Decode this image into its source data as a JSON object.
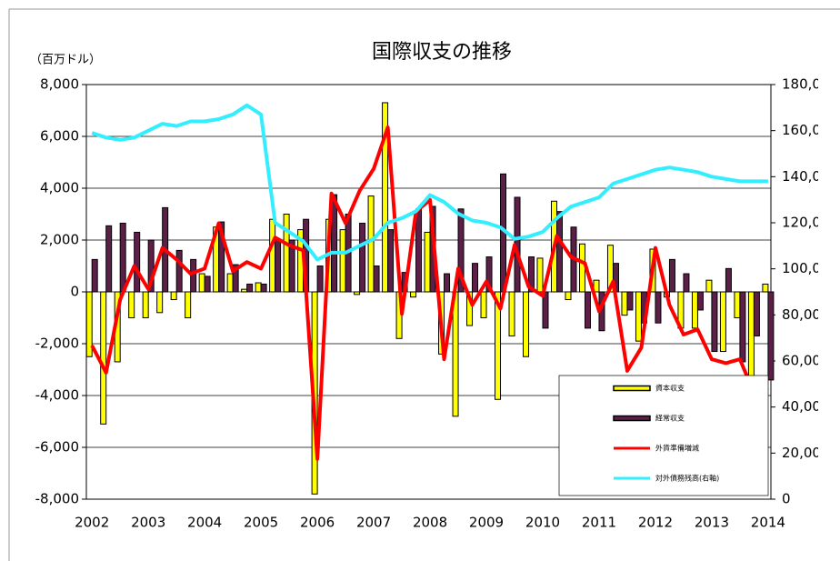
{
  "chart_data": {
    "type": "bar",
    "title": "国際収支の推移",
    "y_unit_label": "（百万ドル）",
    "x": [
      2002,
      2002.25,
      2002.5,
      2002.75,
      2003,
      2003.25,
      2003.5,
      2003.75,
      2004,
      2004.25,
      2004.5,
      2004.75,
      2005,
      2005.25,
      2005.5,
      2005.75,
      2006,
      2006.25,
      2006.5,
      2006.75,
      2007,
      2007.25,
      2007.5,
      2007.75,
      2008,
      2008.25,
      2008.5,
      2008.75,
      2009,
      2009.25,
      2009.5,
      2009.75,
      2010,
      2010.25,
      2010.5,
      2010.75,
      2011,
      2011.25,
      2011.5,
      2011.75,
      2012,
      2012.25,
      2012.5,
      2012.75,
      2013,
      2013.25,
      2013.5,
      2013.75,
      2014
    ],
    "xlim": [
      2001.9,
      2014.05
    ],
    "xticks": [
      2002,
      2003,
      2004,
      2005,
      2006,
      2007,
      2008,
      2009,
      2010,
      2011,
      2012,
      2013,
      2014
    ],
    "ylim": [
      -8000,
      8000
    ],
    "yticks": [
      {
        "value": -8000,
        "label": "-8,000"
      },
      {
        "value": -6000,
        "label": "-6,000"
      },
      {
        "value": -4000,
        "label": "-4,000"
      },
      {
        "value": -2000,
        "label": "-2,000"
      },
      0,
      {
        "value": 2000,
        "label": "2,000"
      },
      {
        "value": 4000,
        "label": "4,000"
      },
      {
        "value": 6000,
        "label": "6,000"
      },
      {
        "value": 8000,
        "label": "8,000"
      }
    ],
    "y2lim": [
      0,
      180000
    ],
    "y2ticks": [
      0,
      {
        "value": 20000,
        "label": "20,000"
      },
      {
        "value": 40000,
        "label": "40,000"
      },
      {
        "value": 60000,
        "label": "60,000"
      },
      {
        "value": 80000,
        "label": "80,000"
      },
      {
        "value": 100000,
        "label": "100,000"
      },
      {
        "value": 120000,
        "label": "120,000"
      },
      {
        "value": 140000,
        "label": "140,000"
      },
      {
        "value": 160000,
        "label": "160,000"
      },
      {
        "value": 180000,
        "label": "180,000"
      }
    ],
    "grid": true,
    "legend": "lower right",
    "series": [
      {
        "name": "資本収支",
        "type": "bar",
        "color": "#ffff00",
        "values": [
          -2500,
          -5100,
          -2700,
          -1000,
          -1000,
          -800,
          -300,
          -1000,
          700,
          2500,
          700,
          100,
          350,
          2800,
          3000,
          2400,
          -7800,
          2800,
          2400,
          -100,
          3700,
          7300,
          -1800,
          -200,
          2300,
          -2400,
          -4800,
          -1300,
          -1000,
          -4150,
          -1700,
          -2500,
          1300,
          3500,
          -300,
          1850,
          450,
          1800,
          -900,
          -1900,
          1650,
          -200,
          -1400,
          -1400,
          450,
          -2300,
          -1000,
          -3600,
          300
        ]
      },
      {
        "name": "経常収支",
        "type": "bar",
        "color": "#5c1f48",
        "values": [
          1250,
          2550,
          2650,
          2300,
          2000,
          3250,
          1600,
          1250,
          600,
          2700,
          1050,
          300,
          300,
          2000,
          2000,
          2800,
          1000,
          3750,
          3000,
          2650,
          1000,
          2400,
          750,
          3200,
          3300,
          700,
          3200,
          1100,
          1350,
          4550,
          3650,
          1350,
          -1400,
          3100,
          2500,
          -1400,
          -1500,
          1100,
          -700,
          -1200,
          -1200,
          1250,
          700,
          -700,
          -2300,
          900,
          -2700,
          -1700,
          -3400
        ]
      },
      {
        "name": "外貨準備増減",
        "type": "line",
        "color": "#ff0000",
        "values": [
          -2070,
          -3120,
          -300,
          1000,
          100,
          1700,
          1250,
          700,
          900,
          2650,
          800,
          1150,
          900,
          2100,
          1800,
          1600,
          -6450,
          3800,
          2650,
          3900,
          4750,
          6350,
          -850,
          3100,
          3550,
          -2600,
          900,
          -500,
          400,
          -650,
          1800,
          200,
          -150,
          2150,
          1350,
          1100,
          -750,
          400,
          -3050,
          -2150,
          1700,
          -500,
          -1650,
          -1450,
          -2600,
          -2750,
          -2600,
          -3900,
          -3700
        ]
      },
      {
        "name": "対外債務残高(右軸)",
        "type": "line",
        "axis": "y2",
        "color": "#33eeff",
        "values": [
          159000,
          157000,
          156000,
          157000,
          160000,
          163000,
          162000,
          164000,
          164000,
          165000,
          167000,
          171000,
          167000,
          120000,
          116000,
          112000,
          104000,
          107000,
          107000,
          110000,
          113000,
          120000,
          122000,
          125000,
          132000,
          129000,
          124000,
          121000,
          120000,
          118000,
          113000,
          114000,
          116000,
          122000,
          127000,
          129000,
          131000,
          137000,
          139000,
          141000,
          143000,
          144000,
          143000,
          142000,
          140000,
          139000,
          138000,
          138000,
          138000
        ]
      }
    ]
  }
}
